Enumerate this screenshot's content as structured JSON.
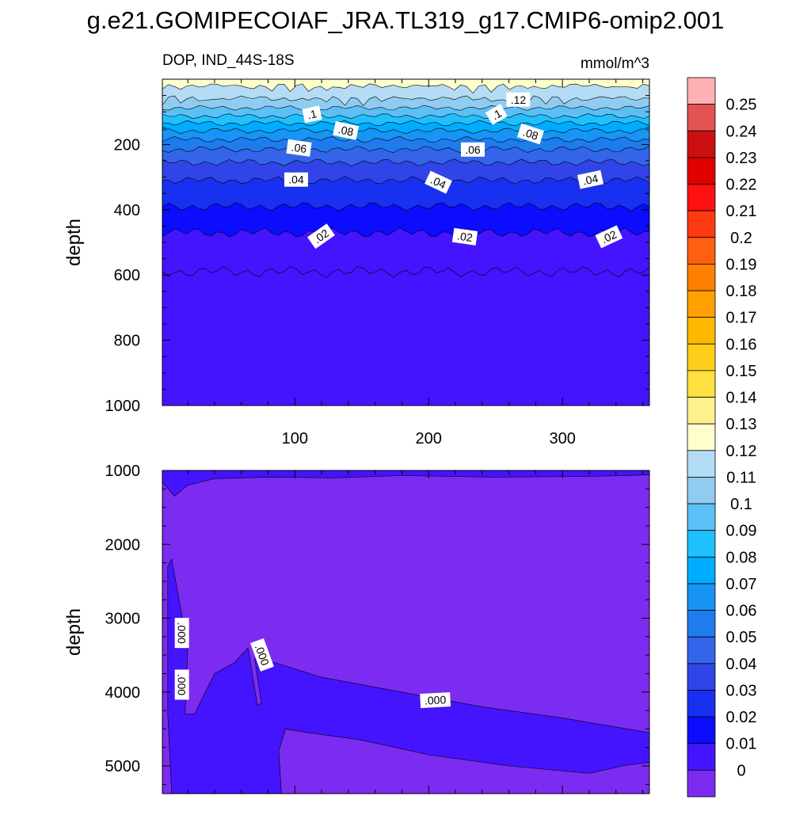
{
  "figure": {
    "title": "g.e21.GOMIPECOIAF_JRA.TL319_g17.CMIP6-omip2.001"
  },
  "chart_data": [
    {
      "type": "heatmap",
      "subtitle_left": "DOP, IND_44S-18S",
      "subtitle_right": "mmol/m^3",
      "ylabel": "depth",
      "xlim": [
        1,
        365
      ],
      "ylim": [
        0,
        1000
      ],
      "y_reversed": true,
      "xticks": [
        100,
        200,
        300
      ],
      "xtick_labels": [
        "100",
        "200",
        "300"
      ],
      "yticks": [
        200,
        400,
        600,
        800,
        1000
      ],
      "ytick_labels": [
        "200",
        "400",
        "600",
        "800",
        "1000"
      ],
      "contour_depths": [
        {
          "level": 0.13,
          "depth": 20
        },
        {
          "level": 0.12,
          "depth": 58
        },
        {
          "level": 0.11,
          "depth": 88
        },
        {
          "level": 0.1,
          "depth": 113
        },
        {
          "level": 0.09,
          "depth": 135
        },
        {
          "level": 0.08,
          "depth": 158
        },
        {
          "level": 0.07,
          "depth": 185
        },
        {
          "level": 0.06,
          "depth": 215
        },
        {
          "level": 0.05,
          "depth": 255
        },
        {
          "level": 0.04,
          "depth": 310
        },
        {
          "level": 0.03,
          "depth": 390
        },
        {
          "level": 0.02,
          "depth": 470
        },
        {
          "level": 0.01,
          "depth": 590
        }
      ],
      "contour_labels": [
        {
          "text": ".12",
          "x": 267,
          "depth": 65
        },
        {
          "text": ".1",
          "x": 113,
          "depth": 110
        },
        {
          "text": ".1",
          "x": 251,
          "depth": 110
        },
        {
          "text": ".08",
          "x": 138,
          "depth": 160
        },
        {
          "text": ".08",
          "x": 276,
          "depth": 170
        },
        {
          "text": ".06",
          "x": 103,
          "depth": 213
        },
        {
          "text": ".06",
          "x": 233,
          "depth": 218
        },
        {
          "text": ".04",
          "x": 101,
          "depth": 310
        },
        {
          "text": ".04",
          "x": 207,
          "depth": 318
        },
        {
          "text": ".04",
          "x": 321,
          "depth": 310
        },
        {
          "text": ".02",
          "x": 120,
          "depth": 483
        },
        {
          "text": ".02",
          "x": 227,
          "depth": 485
        },
        {
          "text": ".02",
          "x": 335,
          "depth": 485
        }
      ]
    },
    {
      "type": "heatmap",
      "ylabel": "depth",
      "xlim": [
        1,
        365
      ],
      "ylim": [
        1000,
        5375
      ],
      "y_reversed": true,
      "yticks": [
        1000,
        2000,
        3000,
        4000,
        5000
      ],
      "ytick_labels": [
        "1000",
        "2000",
        "3000",
        "4000",
        "5000"
      ],
      "contour_labels": [
        {
          "text": ".000",
          "x": 15,
          "depth": 3200
        },
        {
          "text": ".000",
          "x": 15,
          "depth": 3900
        },
        {
          "text": ".000",
          "x": 75,
          "depth": 3500
        },
        {
          "text": ".000",
          "x": 205,
          "depth": 4120
        }
      ]
    }
  ],
  "colorbar": {
    "levels": [
      "0.25",
      "0.24",
      "0.23",
      "0.22",
      "0.21",
      "0.2",
      "0.19",
      "0.18",
      "0.17",
      "0.16",
      "0.15",
      "0.14",
      "0.13",
      "0.12",
      "0.11",
      "0.1",
      "0.09",
      "0.08",
      "0.07",
      "0.06",
      "0.05",
      "0.04",
      "0.03",
      "0.02",
      "0.01",
      "0"
    ],
    "colors": [
      "#ffb0b4",
      "#e35252",
      "#cc1010",
      "#e00000",
      "#ff1010",
      "#ff3a10",
      "#ff6010",
      "#ff8000",
      "#ffa000",
      "#ffb800",
      "#ffce1a",
      "#ffe040",
      "#fff08e",
      "#ffffcc",
      "#b4dcf4",
      "#90ccf0",
      "#5cc0f6",
      "#20c0ff",
      "#00acff",
      "#1894f4",
      "#1e7cee",
      "#3464ea",
      "#3044e8",
      "#1830f0",
      "#0c0cff",
      "#4414ff",
      "#7c2cf0"
    ]
  }
}
